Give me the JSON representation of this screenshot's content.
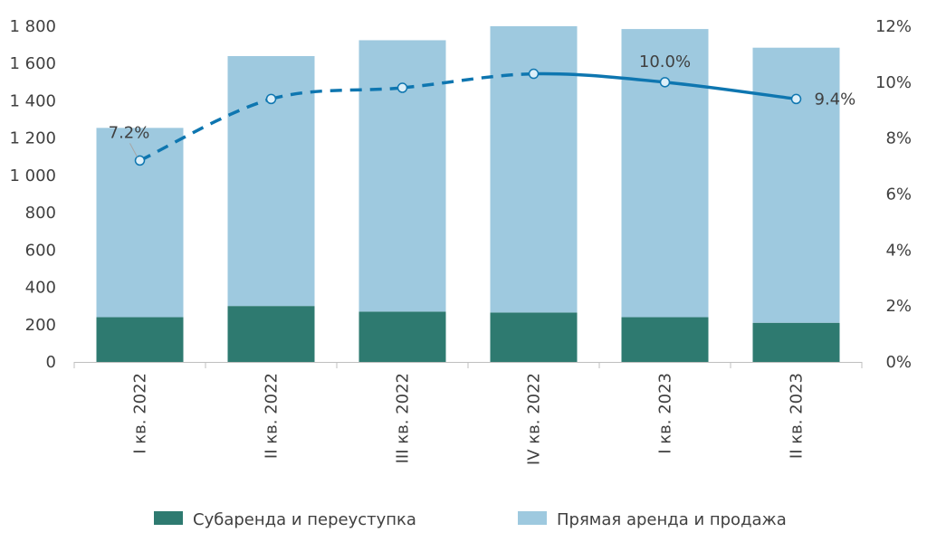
{
  "chart_data": {
    "type": "bar",
    "stacked": true,
    "categories": [
      "I кв. 2022",
      "II кв. 2022",
      "III кв. 2022",
      "IV кв. 2022",
      "I кв. 2023",
      "II кв. 2023"
    ],
    "series": [
      {
        "name": "Субаренда и переуступка",
        "type": "bar",
        "color": "#2e7a70",
        "values": [
          240,
          300,
          270,
          265,
          240,
          210
        ]
      },
      {
        "name": "Прямая аренда и продажа",
        "type": "bar",
        "color": "#9ec9df",
        "values": [
          1015,
          1340,
          1455,
          1535,
          1545,
          1475
        ]
      },
      {
        "type": "line",
        "axis": "right",
        "color": "#0e76b0",
        "values": [
          7.2,
          9.4,
          9.8,
          10.3,
          10.0,
          9.4
        ],
        "line_style": [
          "dashed",
          "dashed",
          "dashed",
          "solid",
          "solid"
        ],
        "data_labels": [
          "7.2%",
          "",
          "",
          "",
          "10.0%",
          "9.4%"
        ]
      }
    ],
    "y_left": {
      "ylim": [
        0,
        1800
      ],
      "ticks": [
        0,
        200,
        400,
        600,
        800,
        1000,
        1200,
        1400,
        1600,
        1800
      ],
      "tick_labels": [
        "0",
        "200",
        "400",
        "600",
        "800",
        "1 000",
        "1 200",
        "1 400",
        "1 600",
        "1 800"
      ]
    },
    "y_right": {
      "ylim": [
        0,
        12
      ],
      "ticks": [
        0,
        2,
        4,
        6,
        8,
        10,
        12
      ],
      "tick_labels": [
        "0%",
        "2%",
        "4%",
        "6%",
        "8%",
        "10%",
        "12%"
      ]
    },
    "grid": false,
    "legend": "bottom",
    "title": "",
    "xlabel": "",
    "ylabel": ""
  }
}
